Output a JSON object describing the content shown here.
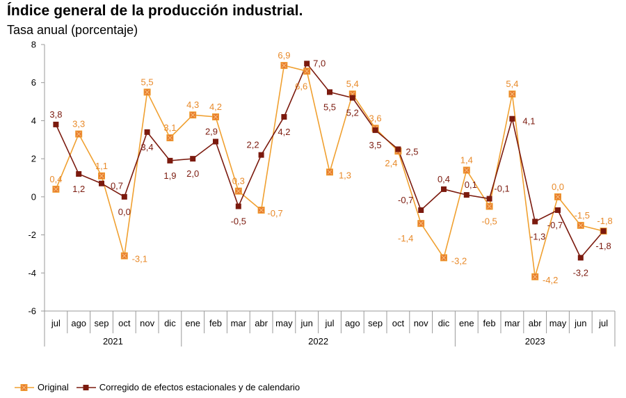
{
  "title": "Índice general de la producción industrial.",
  "subtitle": "Tasa anual (porcentaje)",
  "colors": {
    "original": "#F0A030",
    "corrected": "#7B1A0E",
    "axis": "#999999"
  },
  "chart_data": {
    "type": "line",
    "categories": [
      "jul",
      "ago",
      "sep",
      "oct",
      "nov",
      "dic",
      "ene",
      "feb",
      "mar",
      "abr",
      "may",
      "jun",
      "jul",
      "ago",
      "sep",
      "oct",
      "nov",
      "dic",
      "ene",
      "feb",
      "mar",
      "abr",
      "may",
      "jun",
      "jul"
    ],
    "years": [
      {
        "label": "2021",
        "start": 0,
        "end": 5
      },
      {
        "label": "2022",
        "start": 6,
        "end": 17
      },
      {
        "label": "2023",
        "start": 18,
        "end": 24
      }
    ],
    "ylim": [
      -6,
      8
    ],
    "yticks": [
      -6,
      -4,
      -2,
      0,
      2,
      4,
      6,
      8
    ],
    "grid": false,
    "legend_position": "bottom-left",
    "series": [
      {
        "name": "Original",
        "color": "#F0A030",
        "marker": "square-x",
        "values": [
          0.4,
          3.3,
          1.1,
          -3.1,
          5.5,
          3.1,
          4.3,
          4.2,
          0.3,
          -0.7,
          6.9,
          6.6,
          1.3,
          5.4,
          3.6,
          2.4,
          -1.4,
          -3.2,
          1.4,
          -0.5,
          5.4,
          -4.2,
          0.0,
          -1.5,
          -1.8
        ],
        "labels": [
          "0,4",
          "3,3",
          "1,1",
          "-3,1",
          "5,5",
          "3,1",
          "4,3",
          "4,2",
          "0,3",
          "-0,7",
          "6,9",
          "6,6",
          "1,3",
          "5,4",
          "3,6",
          "2,4",
          "-1,4",
          "-3,2",
          "1,4",
          "-0,5",
          "5,4",
          "-4,2",
          "0,0",
          "-1,5",
          "-1,8"
        ]
      },
      {
        "name": "Corregido de efectos estacionales y de calendario",
        "color": "#7B1A0E",
        "marker": "square",
        "values": [
          3.8,
          1.2,
          0.7,
          0.0,
          3.4,
          1.9,
          2.0,
          2.9,
          -0.5,
          2.2,
          4.2,
          7.0,
          5.5,
          5.2,
          3.5,
          2.5,
          -0.7,
          0.4,
          0.1,
          -0.1,
          4.1,
          -1.3,
          -0.7,
          -3.2,
          -1.8
        ],
        "labels": [
          "3,8",
          "1,2",
          "0,7",
          "0,0",
          "3,4",
          "1,9",
          "2,0",
          "2,9",
          "-0,5",
          "2,2",
          "4,2",
          "7,0",
          "5,5",
          "5,2",
          "3,5",
          "2,5",
          "-0,7",
          "0,4",
          "0,1",
          "-0,1",
          "4,1",
          "-1,3",
          "-0,7",
          "-3,2",
          "-1,8"
        ]
      }
    ]
  }
}
